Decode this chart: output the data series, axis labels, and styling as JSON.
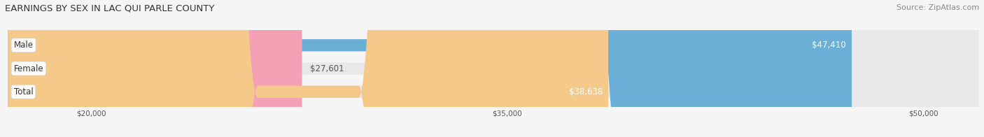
{
  "title": "EARNINGS BY SEX IN LAC QUI PARLE COUNTY",
  "source": "Source: ZipAtlas.com",
  "categories": [
    "Male",
    "Female",
    "Total"
  ],
  "values": [
    47410,
    27601,
    38638
  ],
  "bar_colors": [
    "#6baed6",
    "#f4a0b5",
    "#f5c98a"
  ],
  "bar_labels": [
    "$47,410",
    "$27,601",
    "$38,638"
  ],
  "xlim": [
    17000,
    52000
  ],
  "xticks": [
    20000,
    35000,
    50000
  ],
  "xtick_labels": [
    "$20,000",
    "$35,000",
    "$50,000"
  ],
  "background_color": "#f5f5f5",
  "bar_bg_color": "#e8e8e8",
  "title_fontsize": 9.5,
  "source_fontsize": 8,
  "label_fontsize": 8.5,
  "category_fontsize": 8.5,
  "bar_height": 0.52
}
